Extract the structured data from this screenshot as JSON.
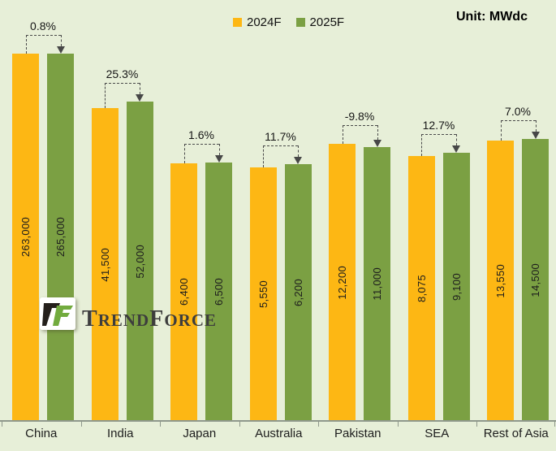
{
  "unit_label": "Unit: MWdc",
  "legend": {
    "items": [
      "2024F",
      "2025F"
    ]
  },
  "logo": {
    "name": "TrendForce",
    "parts": [
      "T",
      "REND",
      "F",
      "ORCE"
    ]
  },
  "colors": {
    "background": "#e7efd8",
    "bar_2024f": "#fdb714",
    "bar_2025f": "#7ba043",
    "axis_line": "#8f988c",
    "annotation": "#4a4a4a",
    "text": "#1d1d1d",
    "logo_black": "#241f1b",
    "logo_green": "#72ab3e",
    "wordmark_text": "#3d3d3d"
  },
  "chart_data": {
    "type": "bar",
    "title": "",
    "unit": "MWdc",
    "scale": "log10",
    "legend_position": "top-center",
    "grid": false,
    "categories": [
      "China",
      "India",
      "Japan",
      "Australia",
      "Pakistan",
      "SEA",
      "Rest of Asia"
    ],
    "series": [
      {
        "name": "2024F",
        "color": "#fdb714",
        "values": [
          263000,
          41500,
          6400,
          5550,
          12200,
          8075,
          13550
        ]
      },
      {
        "name": "2025F",
        "color": "#7ba043",
        "values": [
          265000,
          52000,
          6500,
          6200,
          11000,
          9100,
          14500
        ]
      }
    ],
    "value_labels": [
      [
        "263,000",
        "41,500",
        "6,400",
        "5,550",
        "12,200",
        "8,075",
        "13,550"
      ],
      [
        "265,000",
        "52,000",
        "6,500",
        "6,200",
        "11,000",
        "9,100",
        "14,500"
      ]
    ],
    "growth_labels": [
      "0.8%",
      "25.3%",
      "1.6%",
      "11.7%",
      "-9.8%",
      "12.7%",
      "7.0%"
    ]
  }
}
